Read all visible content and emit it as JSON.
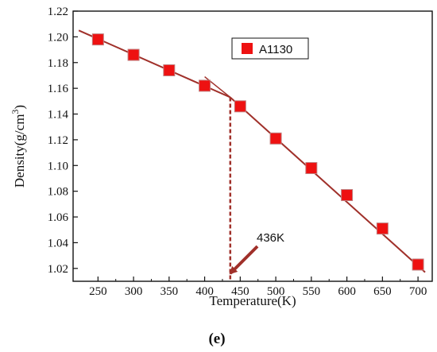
{
  "chart_data": {
    "type": "scatter",
    "xlabel": "Temperature(K)",
    "ylabel_main": "Density(g/cm",
    "ylabel_sup": "3",
    "ylabel_close": ")",
    "xlim": [
      215,
      720
    ],
    "ylim": [
      1.01,
      1.22
    ],
    "x_ticks": [
      250,
      300,
      350,
      400,
      450,
      500,
      550,
      600,
      650,
      700
    ],
    "y_ticks": [
      1.02,
      1.04,
      1.06,
      1.08,
      1.1,
      1.12,
      1.14,
      1.16,
      1.18,
      1.2,
      1.22
    ],
    "series": [
      {
        "name": "A1130",
        "color": "#ee1111",
        "marker": "square",
        "x": [
          250,
          300,
          350,
          400,
          450,
          500,
          550,
          600,
          650,
          700
        ],
        "y": [
          1.198,
          1.186,
          1.174,
          1.162,
          1.146,
          1.121,
          1.098,
          1.077,
          1.051,
          1.023
        ]
      }
    ],
    "fit_lines": [
      {
        "color": "#a0302a",
        "points": [
          [
            223,
            1.205
          ],
          [
            436,
            1.153
          ]
        ]
      },
      {
        "color": "#a0302a",
        "points": [
          [
            436,
            1.153
          ],
          [
            710,
            1.017
          ]
        ]
      }
    ],
    "transition_line": {
      "x": 436,
      "color": "#a0302a",
      "style": "dashed"
    },
    "annotation": {
      "text": "436K",
      "x": 436
    },
    "legend_position": "top-right",
    "grid": false
  },
  "panel_label": "(e)"
}
